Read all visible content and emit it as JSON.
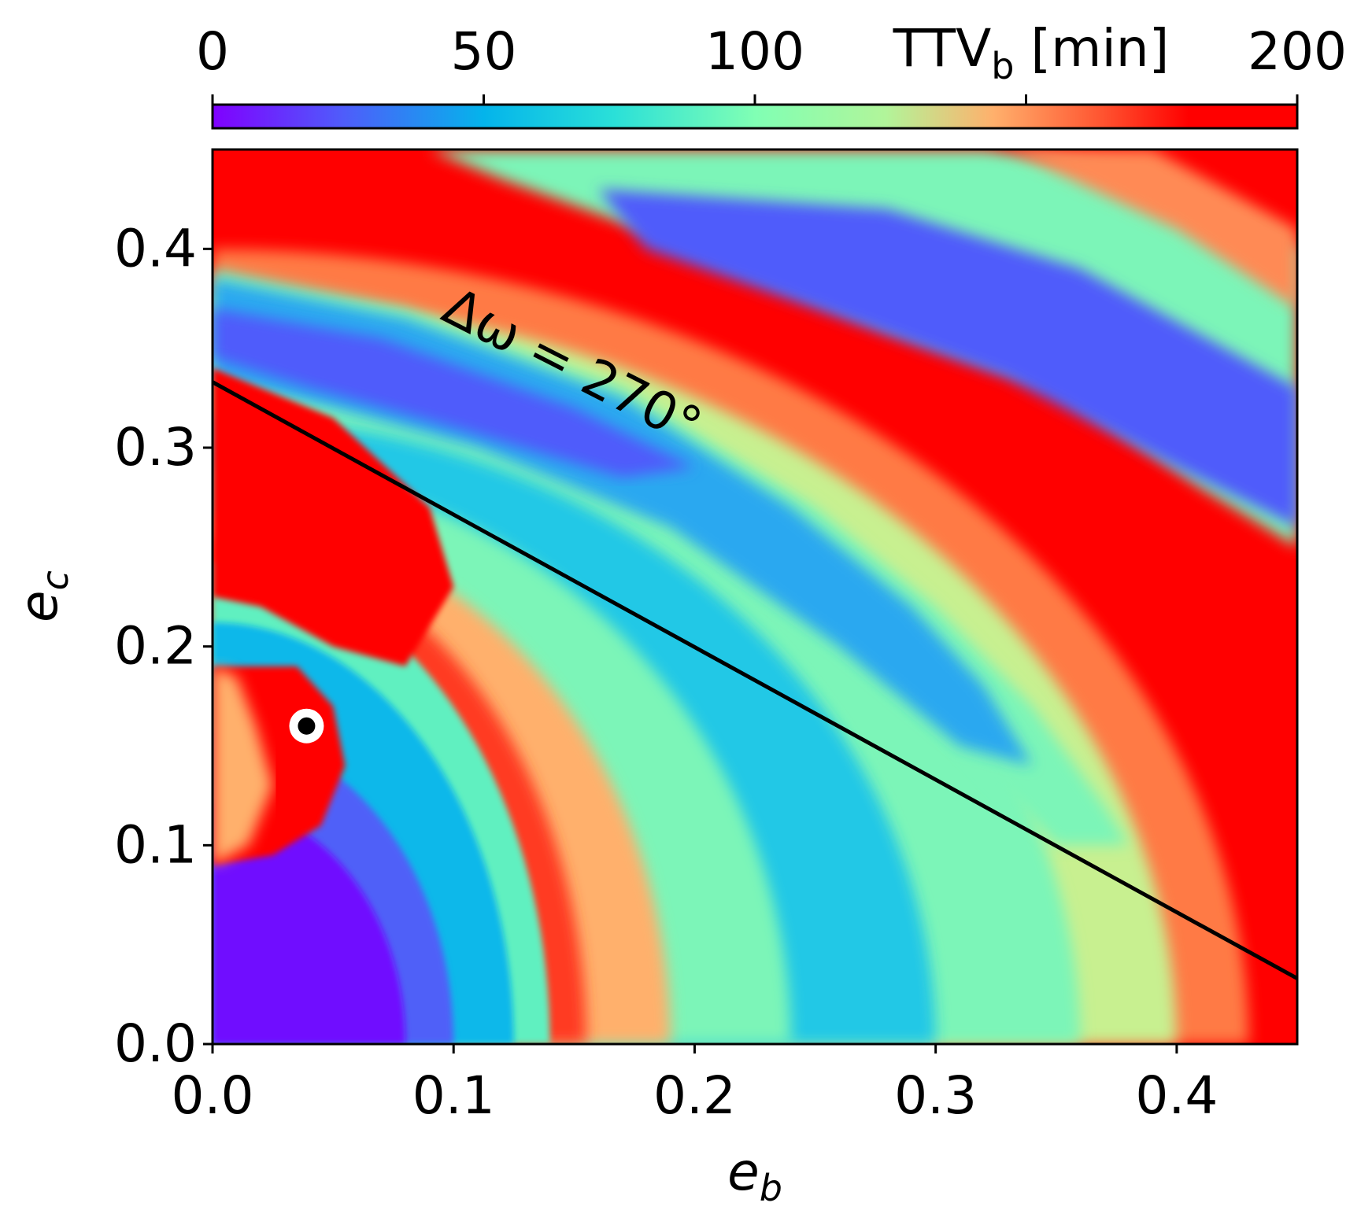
{
  "chart_data": {
    "type": "heatmap",
    "title": "",
    "xlabel": "e",
    "xlabel_sub": "b",
    "ylabel": "e",
    "ylabel_sub": "c",
    "xlim": [
      0.0,
      0.45
    ],
    "ylim": [
      0.0,
      0.45
    ],
    "x_ticks": [
      0.0,
      0.1,
      0.2,
      0.3,
      0.4
    ],
    "x_tick_labels": [
      "0.0",
      "0.1",
      "0.2",
      "0.3",
      "0.4"
    ],
    "y_ticks": [
      0.0,
      0.1,
      0.2,
      0.3,
      0.4
    ],
    "y_tick_labels": [
      "0.0",
      "0.1",
      "0.2",
      "0.3",
      "0.4"
    ],
    "colorbar": {
      "label_main": "TTV",
      "label_sub": "b",
      "label_unit": " [min]",
      "range": [
        0,
        200
      ],
      "ticks": [
        0,
        50,
        100,
        150,
        200
      ],
      "tick_labels": [
        "0",
        "50",
        "100",
        "",
        "200"
      ],
      "colormap": "rainbow",
      "placement": "top"
    },
    "line": {
      "label": "Δω = 270°",
      "points": [
        [
          0.0,
          0.333
        ],
        [
          0.45,
          0.033
        ]
      ],
      "color": "#000000"
    },
    "marker": {
      "x": 0.039,
      "y": 0.16,
      "fill": "#000000",
      "edge": "#ffffff"
    },
    "regions_description_values": {
      "low_corner_ttv": 5,
      "saturated_ttv": 200
    }
  }
}
